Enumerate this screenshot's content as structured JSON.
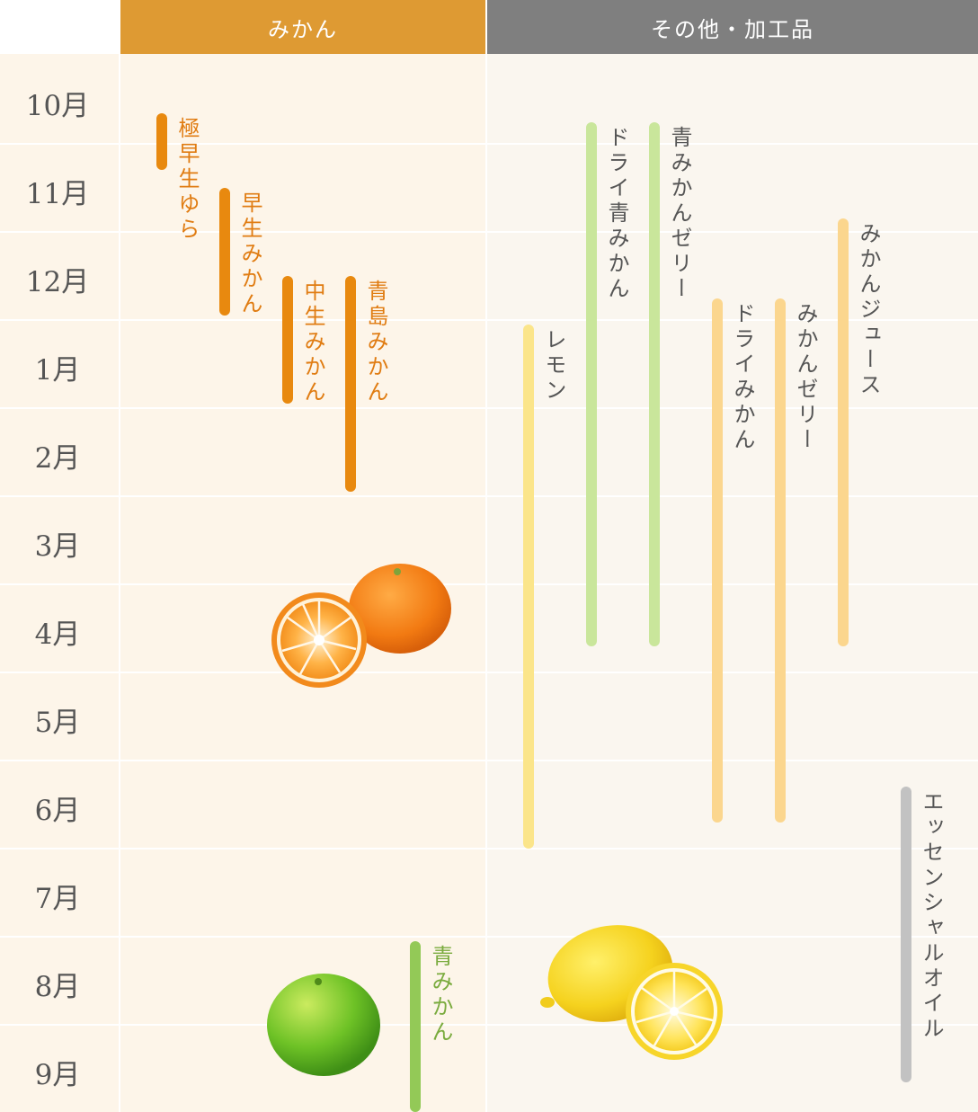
{
  "header": {
    "mikan_label": "みかん",
    "other_label": "その他・加工品"
  },
  "colors": {
    "mikan_header": "#de9a33",
    "other_header": "#7f7f7f",
    "dark_orange": "#e8890f",
    "light_orange": "#fbd68e",
    "light_green": "#c9e69b",
    "yellow": "#fbe58a",
    "green": "#93c957",
    "gray": "#c2c2c2"
  },
  "chart_data": {
    "type": "timeline",
    "months": [
      "10月",
      "11月",
      "12月",
      "1月",
      "2月",
      "3月",
      "4月",
      "5月",
      "6月",
      "7月",
      "8月",
      "9月"
    ],
    "items": [
      {
        "name": "極早生ゆら",
        "group": "mikan",
        "start": 0.65,
        "end": 1.3,
        "color": "dark_orange",
        "label_color": "#e07c12"
      },
      {
        "name": "早生みかん",
        "group": "mikan",
        "start": 1.5,
        "end": 2.95,
        "color": "dark_orange",
        "label_color": "#e07c12"
      },
      {
        "name": "中生みかん",
        "group": "mikan",
        "start": 2.5,
        "end": 3.95,
        "color": "dark_orange",
        "label_color": "#e07c12"
      },
      {
        "name": "青島みかん",
        "group": "mikan",
        "start": 2.5,
        "end": 4.95,
        "color": "dark_orange",
        "label_color": "#e07c12"
      },
      {
        "name": "青みかん",
        "group": "mikan",
        "start": 10.05,
        "end": 12.0,
        "color": "green",
        "label_color": "#7aab3e"
      },
      {
        "name": "レモン",
        "group": "other",
        "start": 3.05,
        "end": 9.0,
        "color": "yellow",
        "label_color": "#555555"
      },
      {
        "name": "ドライ青みかん",
        "group": "other",
        "start": 0.75,
        "end": 6.7,
        "color": "light_green",
        "label_color": "#555555"
      },
      {
        "name": "青みかんゼリー",
        "group": "other",
        "start": 0.75,
        "end": 6.7,
        "color": "light_green",
        "label_color": "#555555"
      },
      {
        "name": "ドライみかん",
        "group": "other",
        "start": 2.75,
        "end": 8.7,
        "color": "light_orange",
        "label_color": "#555555"
      },
      {
        "name": "みかんゼリー",
        "group": "other",
        "start": 2.75,
        "end": 8.7,
        "color": "light_orange",
        "label_color": "#555555"
      },
      {
        "name": "みかんジュース",
        "group": "other",
        "start": 1.85,
        "end": 6.7,
        "color": "light_orange",
        "label_color": "#555555"
      },
      {
        "name": "エッセンシャルオイル",
        "group": "other",
        "start": 8.3,
        "end": 11.65,
        "color": "gray",
        "label_color": "#555555"
      }
    ]
  }
}
